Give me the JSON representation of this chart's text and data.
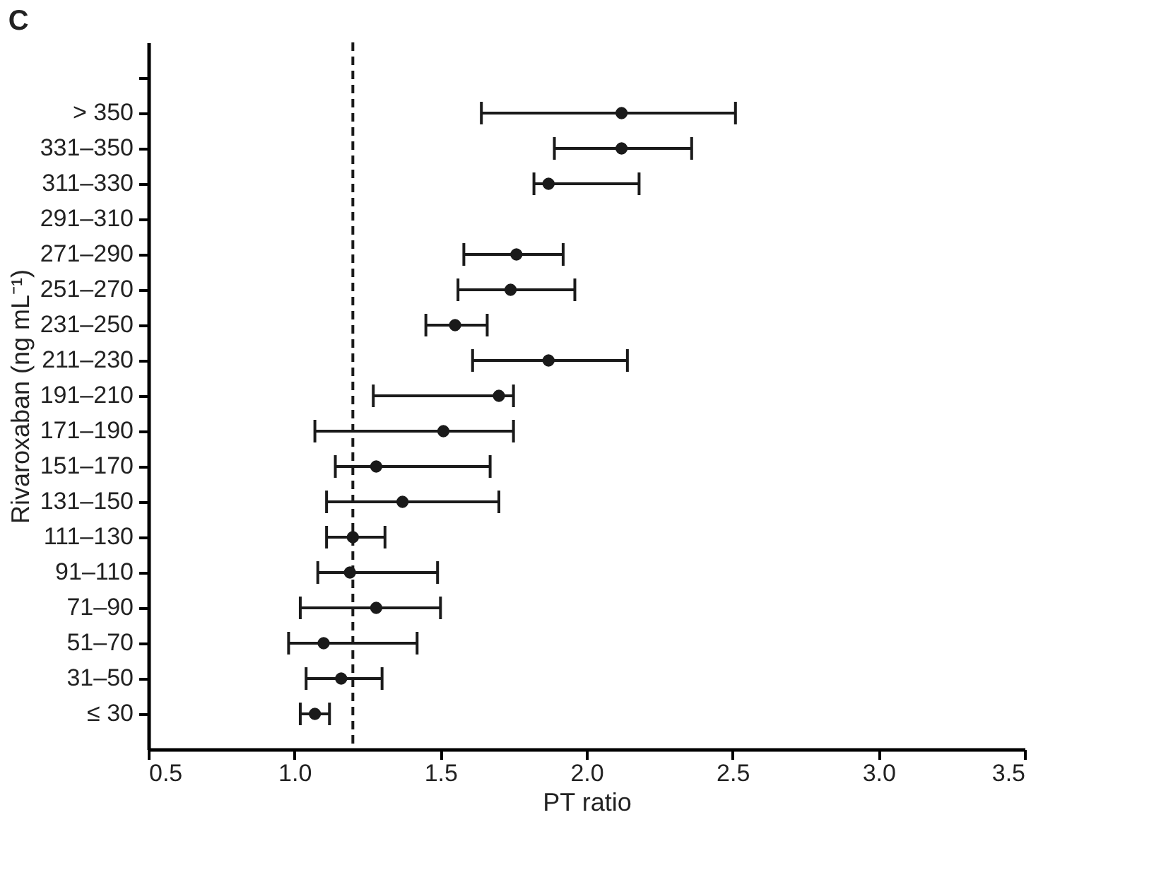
{
  "chart_data": {
    "type": "scatter",
    "title": "C",
    "orientation": "horizontal",
    "xlabel": "PT ratio",
    "ylabel": "Rivaroxaban (ng mL⁻¹)",
    "categories": [
      null,
      "> 350",
      "331–350",
      "311–330",
      "291–310",
      "271–290",
      "251–270",
      "231–250",
      "211–230",
      "191–210",
      "171–190",
      "151–170",
      "131–150",
      "111–130",
      "91–110",
      "71–90",
      "51–70",
      "31–50",
      "≤ 30"
    ],
    "color": "#1a1a1a",
    "values": [
      null,
      2.12,
      2.12,
      1.87,
      null,
      1.76,
      1.74,
      1.55,
      1.87,
      1.7,
      1.51,
      1.28,
      1.37,
      1.2,
      1.19,
      1.28,
      1.1,
      1.16,
      1.07
    ],
    "errors": [
      null,
      [
        1.64,
        2.51
      ],
      [
        1.89,
        2.36
      ],
      [
        1.82,
        2.18
      ],
      null,
      [
        1.58,
        1.92
      ],
      [
        1.56,
        1.96
      ],
      [
        1.45,
        1.66
      ],
      [
        1.61,
        2.14
      ],
      [
        1.27,
        1.75
      ],
      [
        1.07,
        1.75
      ],
      [
        1.14,
        1.67
      ],
      [
        1.11,
        1.7
      ],
      [
        1.11,
        1.31
      ],
      [
        1.08,
        1.49
      ],
      [
        1.02,
        1.5
      ],
      [
        0.98,
        1.42
      ],
      [
        1.04,
        1.3
      ],
      [
        1.02,
        1.12
      ]
    ],
    "xlim": [
      0.5,
      3.5
    ],
    "xticks": [
      0.5,
      {
        "value": 1,
        "label": "1.0"
      },
      1.5,
      {
        "value": 2,
        "label": "2.0"
      },
      2.5,
      {
        "value": 3,
        "label": "3.0"
      },
      3.5
    ],
    "ref_lines": [
      {
        "axis": "x",
        "value": 1.2,
        "label": null,
        "color": "#1a1a1a",
        "line_style": "dashed"
      }
    ],
    "marker": "circle",
    "grid": false
  }
}
